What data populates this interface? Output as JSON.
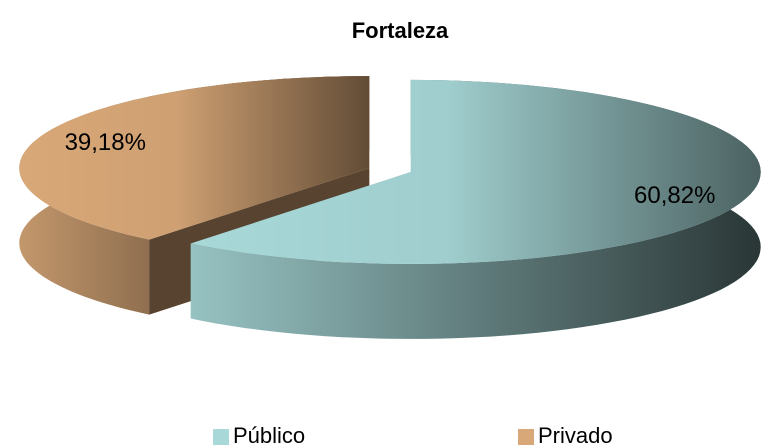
{
  "chart_data": {
    "type": "pie",
    "title": "Fortaleza",
    "categories": [
      "Público",
      "Privado"
    ],
    "values": [
      60.82,
      39.18
    ],
    "value_labels": [
      "60,82%",
      "39,18%"
    ],
    "colors": [
      "#a8d8d8",
      "#d9a878"
    ],
    "legend": "bottom"
  }
}
